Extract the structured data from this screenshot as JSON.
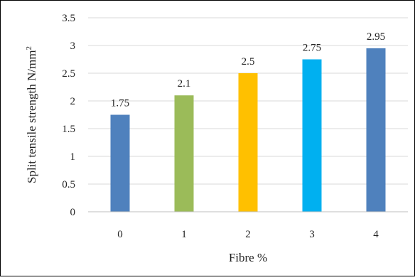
{
  "chart_data": {
    "type": "bar",
    "categories": [
      "0",
      "1",
      "2",
      "3",
      "4"
    ],
    "values": [
      1.75,
      2.1,
      2.5,
      2.75,
      2.95
    ],
    "data_labels": [
      "1.75",
      "2.1",
      "2.5",
      "2.75",
      "2.95"
    ],
    "bar_colors": [
      "#4f81bd",
      "#9bbb59",
      "#ffc000",
      "#00b0f0",
      "#4f81bd"
    ],
    "title": "",
    "xlabel": "Fibre %",
    "ylabel": "Split tensile strength N/mm",
    "ylabel_superscript": "2",
    "ylim": [
      0,
      3.5
    ],
    "yticks": [
      "0",
      "0.5",
      "1",
      "1.5",
      "2",
      "2.5",
      "3",
      "3.5"
    ],
    "grid": true,
    "legend": "none"
  },
  "colors": {
    "gridline": "#d9d9d9",
    "axis": "#bfbfbf",
    "frame": "#000000",
    "text": "#222222"
  }
}
